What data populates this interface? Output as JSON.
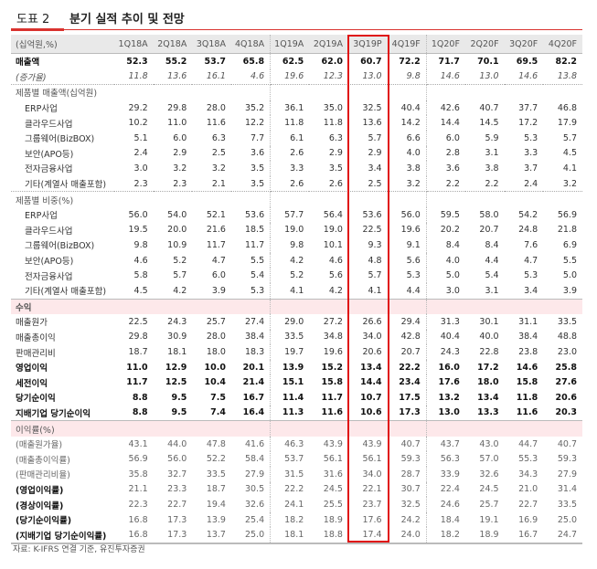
{
  "figure": {
    "number": "도표 2",
    "title": "분기 실적 추이 및 전망",
    "source_note": "자료: K-IFRS 연결 기준, 유진투자증권"
  },
  "colors": {
    "accent": "#d9322e",
    "highlight_box": "#e01010",
    "section_bg": "#fde8ea",
    "header_bg": "#e9e9e9"
  },
  "highlighted_column": "3Q19P",
  "table": {
    "unit_label": "(십억원,%)",
    "columns": [
      "1Q18A",
      "2Q18A",
      "3Q18A",
      "4Q18A",
      "1Q19A",
      "2Q19A",
      "3Q19P",
      "4Q19F",
      "1Q20F",
      "2Q20F",
      "3Q20F",
      "4Q20F"
    ],
    "rows": [
      {
        "label": "매출액",
        "style": "bold",
        "values": [
          "52.3",
          "55.2",
          "53.7",
          "65.8",
          "62.5",
          "62.0",
          "60.7",
          "72.2",
          "71.7",
          "70.1",
          "69.5",
          "82.2"
        ]
      },
      {
        "label": "(증가율)",
        "style": "italic dot",
        "values": [
          "11.8",
          "13.6",
          "16.1",
          "4.6",
          "19.6",
          "12.3",
          "13.0",
          "9.8",
          "14.6",
          "13.0",
          "14.6",
          "13.8"
        ]
      },
      {
        "label": "제품별 매출액(십억원)",
        "style": "sub",
        "values": []
      },
      {
        "label": "ERP사업",
        "style": "item",
        "values": [
          "29.2",
          "29.8",
          "28.0",
          "35.2",
          "36.1",
          "35.0",
          "32.5",
          "40.4",
          "42.6",
          "40.7",
          "37.7",
          "46.8"
        ]
      },
      {
        "label": "클라우드사업",
        "style": "item",
        "values": [
          "10.2",
          "11.0",
          "11.6",
          "12.2",
          "11.8",
          "11.8",
          "13.6",
          "14.2",
          "14.4",
          "14.5",
          "17.2",
          "17.9"
        ]
      },
      {
        "label": "그룹웨어(BizBOX)",
        "style": "item",
        "values": [
          "5.1",
          "6.0",
          "6.3",
          "7.7",
          "6.1",
          "6.3",
          "5.7",
          "6.6",
          "6.0",
          "5.9",
          "5.3",
          "5.7"
        ]
      },
      {
        "label": "보안(APO등)",
        "style": "item",
        "values": [
          "2.4",
          "2.9",
          "2.5",
          "3.6",
          "2.6",
          "2.9",
          "2.9",
          "4.0",
          "2.8",
          "3.1",
          "3.3",
          "4.5"
        ]
      },
      {
        "label": "전자금융사업",
        "style": "item",
        "values": [
          "3.0",
          "3.2",
          "3.2",
          "3.5",
          "3.3",
          "3.5",
          "3.4",
          "3.8",
          "3.6",
          "3.8",
          "3.7",
          "4.1"
        ]
      },
      {
        "label": "기타(계열사 매출포함)",
        "style": "item dot",
        "values": [
          "2.3",
          "2.3",
          "2.1",
          "3.5",
          "2.6",
          "2.6",
          "2.5",
          "3.2",
          "2.2",
          "2.2",
          "2.4",
          "3.2"
        ]
      },
      {
        "label": "제품별 비중(%)",
        "style": "sub",
        "values": []
      },
      {
        "label": "ERP사업",
        "style": "item",
        "values": [
          "56.0",
          "54.0",
          "52.1",
          "53.6",
          "57.7",
          "56.4",
          "53.6",
          "56.0",
          "59.5",
          "58.0",
          "54.2",
          "56.9"
        ]
      },
      {
        "label": "클라우드사업",
        "style": "item",
        "values": [
          "19.5",
          "20.0",
          "21.6",
          "18.5",
          "19.0",
          "19.0",
          "22.5",
          "19.6",
          "20.2",
          "20.7",
          "24.8",
          "21.8"
        ]
      },
      {
        "label": "그룹웨어(BizBOX)",
        "style": "item",
        "values": [
          "9.8",
          "10.9",
          "11.7",
          "11.7",
          "9.8",
          "10.1",
          "9.3",
          "9.1",
          "8.4",
          "8.4",
          "7.6",
          "6.9"
        ]
      },
      {
        "label": "보안(APO등)",
        "style": "item",
        "values": [
          "4.6",
          "5.2",
          "4.7",
          "5.5",
          "4.2",
          "4.6",
          "4.8",
          "5.6",
          "4.0",
          "4.4",
          "4.7",
          "5.5"
        ]
      },
      {
        "label": "전자금융사업",
        "style": "item",
        "values": [
          "5.8",
          "5.7",
          "6.0",
          "5.4",
          "5.2",
          "5.6",
          "5.7",
          "5.3",
          "5.0",
          "5.4",
          "5.3",
          "5.0"
        ]
      },
      {
        "label": "기타(계열사 매출포함)",
        "style": "item solid",
        "values": [
          "4.5",
          "4.2",
          "3.9",
          "5.3",
          "4.1",
          "4.2",
          "4.1",
          "4.4",
          "3.0",
          "3.1",
          "3.4",
          "3.9"
        ]
      },
      {
        "label": "수익",
        "style": "section b",
        "values": []
      },
      {
        "label": "매출원가",
        "style": "",
        "values": [
          "22.5",
          "24.3",
          "25.7",
          "27.4",
          "29.0",
          "27.2",
          "26.6",
          "29.4",
          "31.3",
          "30.1",
          "31.1",
          "33.5"
        ]
      },
      {
        "label": "매출총이익",
        "style": "",
        "values": [
          "29.8",
          "30.9",
          "28.0",
          "38.4",
          "33.5",
          "34.8",
          "34.0",
          "42.8",
          "40.4",
          "40.0",
          "38.4",
          "48.8"
        ]
      },
      {
        "label": "판매관리비",
        "style": "",
        "values": [
          "18.7",
          "18.1",
          "18.0",
          "18.3",
          "19.7",
          "19.6",
          "20.6",
          "20.7",
          "24.3",
          "22.8",
          "23.8",
          "23.0"
        ]
      },
      {
        "label": "영업이익",
        "style": "bold",
        "values": [
          "11.0",
          "12.9",
          "10.0",
          "20.1",
          "13.9",
          "15.2",
          "13.4",
          "22.2",
          "16.0",
          "17.2",
          "14.6",
          "25.8"
        ]
      },
      {
        "label": "세전이익",
        "style": "bold",
        "values": [
          "11.7",
          "12.5",
          "10.4",
          "21.4",
          "15.1",
          "15.8",
          "14.4",
          "23.4",
          "17.6",
          "18.0",
          "15.8",
          "27.6"
        ]
      },
      {
        "label": "당기순이익",
        "style": "bold",
        "values": [
          "8.8",
          "9.5",
          "7.5",
          "16.7",
          "11.4",
          "11.7",
          "10.7",
          "17.5",
          "13.2",
          "13.4",
          "11.8",
          "20.6"
        ]
      },
      {
        "label": "지배기업 당기순이익",
        "style": "bold solid",
        "values": [
          "8.8",
          "9.5",
          "7.4",
          "16.4",
          "11.3",
          "11.6",
          "10.6",
          "17.3",
          "13.0",
          "13.3",
          "11.6",
          "20.3"
        ]
      },
      {
        "label": "이익률(%)",
        "style": "section",
        "values": []
      },
      {
        "label": "(매출원가율)",
        "style": "gray",
        "values": [
          "43.1",
          "44.0",
          "47.8",
          "41.6",
          "46.3",
          "43.9",
          "43.9",
          "40.7",
          "43.7",
          "43.0",
          "44.7",
          "40.7"
        ]
      },
      {
        "label": "(매출총이익률)",
        "style": "gray",
        "values": [
          "56.9",
          "56.0",
          "52.2",
          "58.4",
          "53.7",
          "56.1",
          "56.1",
          "59.3",
          "56.3",
          "57.0",
          "55.3",
          "59.3"
        ]
      },
      {
        "label": "(판매관리비율)",
        "style": "gray",
        "values": [
          "35.8",
          "32.7",
          "33.5",
          "27.9",
          "31.5",
          "31.6",
          "34.0",
          "28.7",
          "33.9",
          "32.6",
          "34.3",
          "27.9"
        ]
      },
      {
        "label": "(영업이익률)",
        "style": "gray boldlabel",
        "values": [
          "21.1",
          "23.3",
          "18.7",
          "30.5",
          "22.2",
          "24.5",
          "22.1",
          "30.7",
          "22.4",
          "24.5",
          "21.0",
          "31.4"
        ]
      },
      {
        "label": "(경상이익률)",
        "style": "gray boldlabel",
        "values": [
          "22.3",
          "22.7",
          "19.4",
          "32.6",
          "24.1",
          "25.5",
          "23.7",
          "32.5",
          "24.6",
          "25.7",
          "22.7",
          "33.5"
        ]
      },
      {
        "label": "(당기순이익률)",
        "style": "gray boldlabel",
        "values": [
          "16.8",
          "17.3",
          "13.9",
          "25.4",
          "18.2",
          "18.9",
          "17.6",
          "24.2",
          "18.4",
          "19.1",
          "16.9",
          "25.0"
        ]
      },
      {
        "label": "(지배기업 당기순이익률)",
        "style": "gray boldlabel last",
        "values": [
          "16.8",
          "17.3",
          "13.7",
          "25.0",
          "18.1",
          "18.8",
          "17.4",
          "24.0",
          "18.2",
          "18.9",
          "16.7",
          "24.7"
        ]
      }
    ]
  }
}
